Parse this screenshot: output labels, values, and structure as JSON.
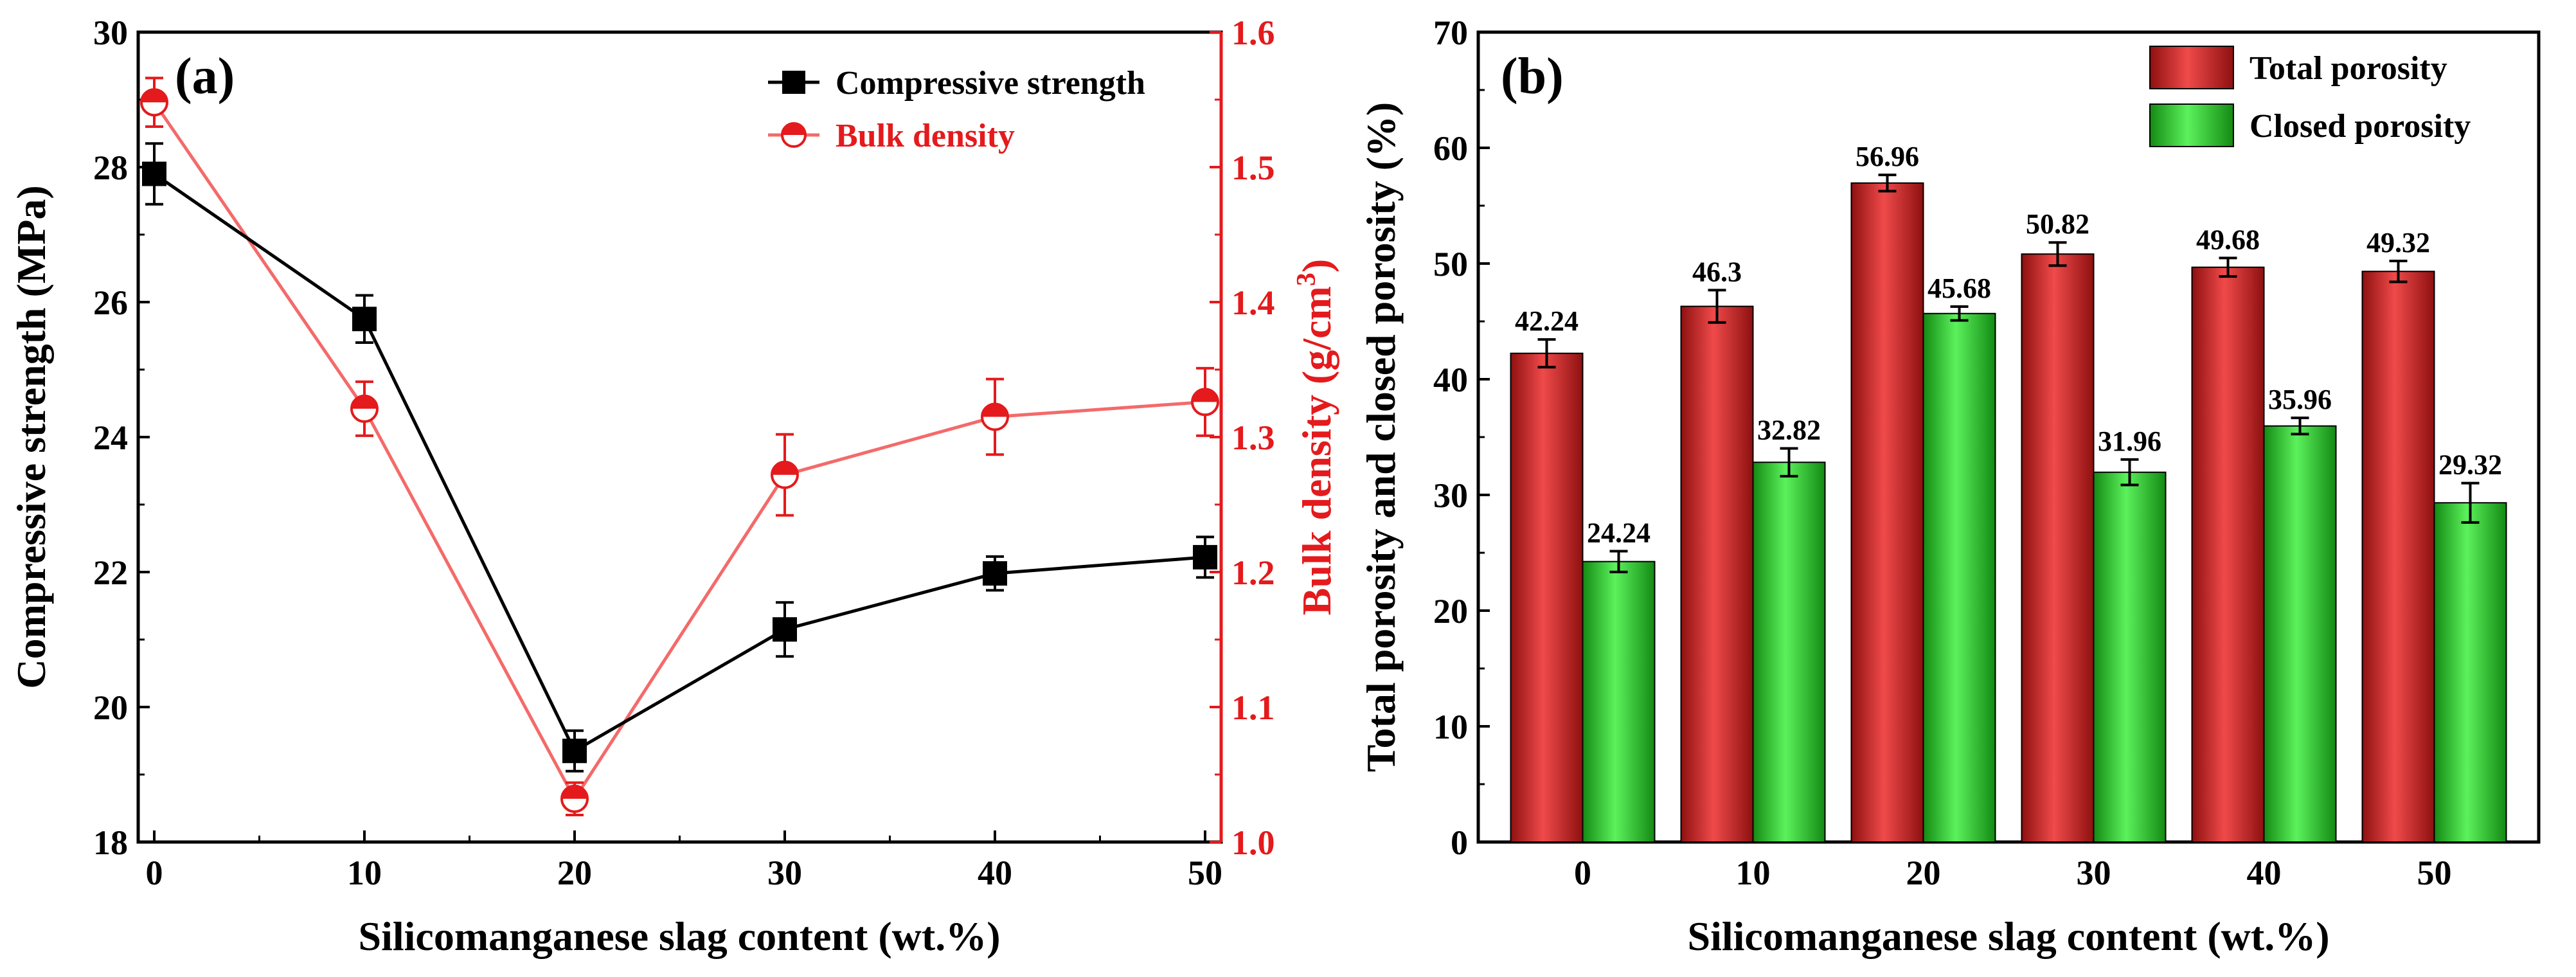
{
  "chart_data": [
    {
      "panel": "(a)",
      "type": "line",
      "xlabel": "Silicomanganese slag content (wt.%)",
      "x": [
        0,
        10,
        20,
        30,
        40,
        50
      ],
      "xlim": [
        0,
        50
      ],
      "xticks": [
        "0",
        "10",
        "20",
        "30",
        "40",
        "50"
      ],
      "ylabel": "Compressive strength (MPa)",
      "ylim": [
        18,
        30
      ],
      "yticks": [
        "18",
        "20",
        "22",
        "24",
        "26",
        "28",
        "30"
      ],
      "y2label": "Bulk density (g/cm",
      "y2label_sup": "3",
      "y2label_end": ")",
      "y2lim": [
        1.0,
        1.6
      ],
      "y2ticks": [
        "1.0",
        "1.1",
        "1.2",
        "1.3",
        "1.4",
        "1.5",
        "1.6"
      ],
      "legend_position": "top-right",
      "series": [
        {
          "name": "Compressive strength",
          "axis": "left",
          "color": "#000000",
          "marker": "square",
          "values": [
            27.9,
            25.75,
            19.35,
            21.15,
            21.98,
            22.22
          ],
          "errors": [
            0.45,
            0.35,
            0.3,
            0.4,
            0.25,
            0.3
          ]
        },
        {
          "name": "Bulk density",
          "axis": "right",
          "color": "#e41a1c",
          "line_color": "#f46a6a",
          "marker": "half-filled circle",
          "values": [
            1.548,
            1.321,
            1.032,
            1.272,
            1.315,
            1.326
          ],
          "errors": [
            0.018,
            0.02,
            0.012,
            0.03,
            0.028,
            0.025
          ]
        }
      ]
    },
    {
      "panel": "(b)",
      "type": "bar",
      "xlabel": "Silicomanganese slag content (wt.%)",
      "categories": [
        "0",
        "10",
        "20",
        "30",
        "40",
        "50"
      ],
      "ylabel": "Total porosity and closed porosity (%)",
      "ylim": [
        0,
        70
      ],
      "yticks": [
        "0",
        "10",
        "20",
        "30",
        "40",
        "50",
        "60",
        "70"
      ],
      "legend_position": "top-right",
      "series": [
        {
          "name": "Total porosity",
          "color": "#d42c2c",
          "values": [
            42.24,
            46.3,
            56.96,
            50.82,
            49.68,
            49.32
          ],
          "labels": [
            "42.24",
            "46.3",
            "56.96",
            "50.82",
            "49.68",
            "49.32"
          ],
          "errors": [
            1.2,
            1.4,
            0.7,
            1.0,
            0.8,
            0.9
          ]
        },
        {
          "name": "Closed porosity",
          "color": "#3ed83e",
          "values": [
            24.24,
            32.82,
            45.68,
            31.96,
            35.96,
            29.32
          ],
          "labels": [
            "24.24",
            "32.82",
            "45.68",
            "31.96",
            "35.96",
            "29.32"
          ],
          "errors": [
            0.9,
            1.2,
            0.6,
            1.1,
            0.7,
            1.7
          ]
        }
      ]
    }
  ]
}
